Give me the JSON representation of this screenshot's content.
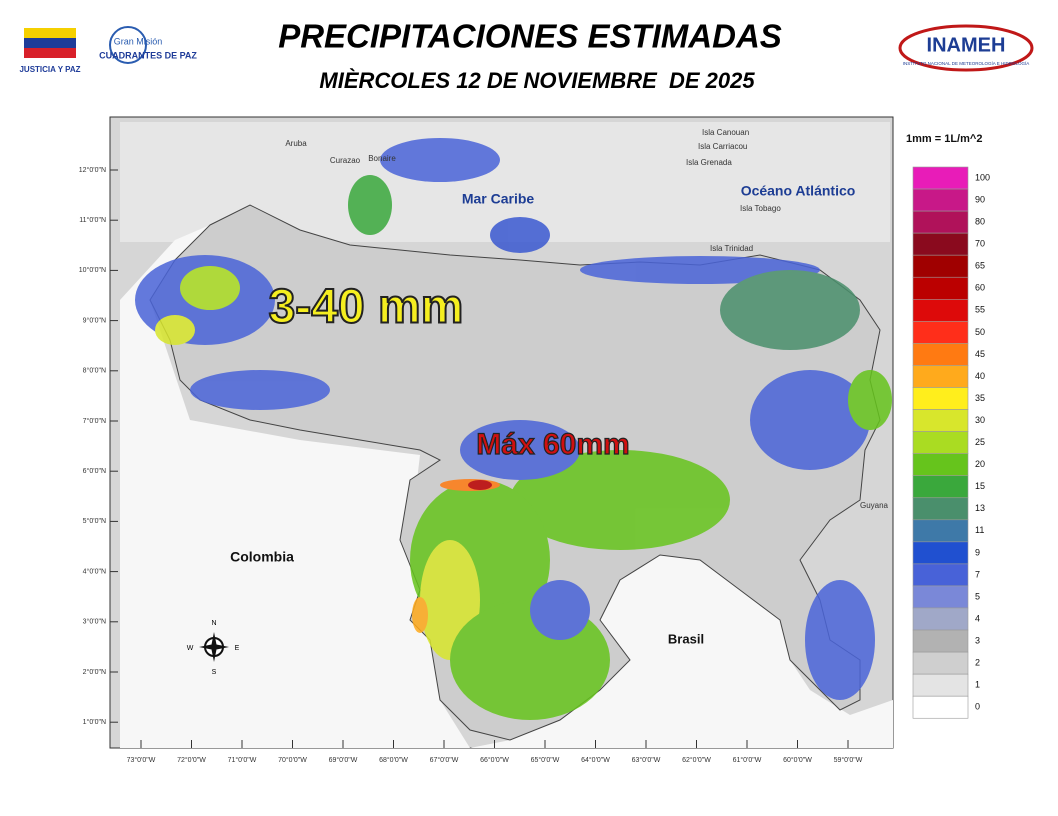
{
  "header": {
    "title": "PRECIPITACIONES ESTIMADAS",
    "date": "MIÈRCOLES 12 DE NOVIEMBRE  DE 2025",
    "logos": [
      "JUSTICIA Y PAZ",
      "Gran Misión",
      "CUADRANTES DE PAZ",
      "INAMEH",
      "INSTITUTO NACIONAL DE METEOROLOGÍA E HIDROLOGÍA"
    ]
  },
  "map": {
    "labels": [
      "Mar Caribe",
      "Océano Atlántico",
      "Colombia",
      "Brasil",
      "Guyana",
      "Aruba",
      "Curazao",
      "Bonaire",
      "Isla Canouan",
      "Isla Carriacou",
      "Isla Grenada",
      "Isla Tobago",
      "Isla Trinidad"
    ],
    "annotations": [
      "3-40 mm",
      "Máx 60mm"
    ],
    "compass": [
      "N",
      "S",
      "E",
      "W"
    ],
    "lat_ticks": [
      "12°0'0\"N",
      "11°0'0\"N",
      "10°0'0\"N",
      "9°0'0\"N",
      "8°0'0\"N",
      "7°0'0\"N",
      "6°0'0\"N",
      "5°0'0\"N",
      "4°0'0\"N",
      "3°0'0\"N",
      "2°0'0\"N",
      "1°0'0\"N"
    ],
    "lon_ticks": [
      "73°0'0\"W",
      "72°0'0\"W",
      "71°0'0\"W",
      "70°0'0\"W",
      "69°0'0\"W",
      "68°0'0\"W",
      "67°0'0\"W",
      "66°0'0\"W",
      "65°0'0\"W",
      "64°0'0\"W",
      "63°0'0\"W",
      "62°0'0\"W",
      "61°0'0\"W",
      "60°0'0\"W",
      "59°0'0\"W"
    ]
  },
  "legend": {
    "unit": "1mm = 1L/m^2",
    "classes": [
      {
        "label": "100",
        "color": "#e81cb8"
      },
      {
        "label": "90",
        "color": "#c81888"
      },
      {
        "label": "80",
        "color": "#b0125a"
      },
      {
        "label": "70",
        "color": "#8a0a1e"
      },
      {
        "label": "65",
        "color": "#a00000"
      },
      {
        "label": "60",
        "color": "#bb0000"
      },
      {
        "label": "55",
        "color": "#dd0a0a"
      },
      {
        "label": "50",
        "color": "#ff2e1a"
      },
      {
        "label": "45",
        "color": "#ff7a12"
      },
      {
        "label": "40",
        "color": "#ffaa1c"
      },
      {
        "label": "35",
        "color": "#ffee1c"
      },
      {
        "label": "30",
        "color": "#d8e62c"
      },
      {
        "label": "25",
        "color": "#aadc22"
      },
      {
        "label": "20",
        "color": "#66c41c"
      },
      {
        "label": "15",
        "color": "#3aa83c"
      },
      {
        "label": "13",
        "color": "#4a8f6c"
      },
      {
        "label": "11",
        "color": "#3e79a8"
      },
      {
        "label": "9",
        "color": "#2050d0"
      },
      {
        "label": "7",
        "color": "#4862d8"
      },
      {
        "label": "5",
        "color": "#7a88d8"
      },
      {
        "label": "4",
        "color": "#a0a8c8"
      },
      {
        "label": "3",
        "color": "#b2b2b2"
      },
      {
        "label": "2",
        "color": "#cfcfcf"
      },
      {
        "label": "1",
        "color": "#e4e4e4"
      },
      {
        "label": "0",
        "color": "#ffffff"
      }
    ]
  }
}
